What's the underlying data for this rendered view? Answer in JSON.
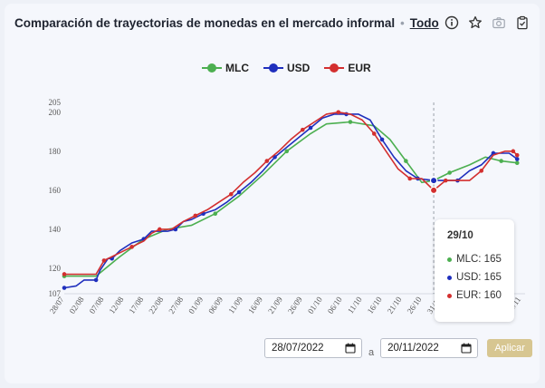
{
  "header": {
    "title": "Comparación de trayectorias de monedas en el mercado informal",
    "separator": "•",
    "period": "Todo",
    "icons": [
      "info-icon",
      "star-icon",
      "camera-icon",
      "clipboard-icon"
    ]
  },
  "controls": {
    "start_date": "28/07/2022",
    "connector": "a",
    "end_date": "20/11/2022",
    "apply_label": "Aplicar"
  },
  "colors": {
    "MLC": "#4caf50",
    "USD": "#1f2fbd",
    "EUR": "#d32f2f",
    "accent": "#d7c691"
  },
  "tooltip": {
    "date": "29/10",
    "rows": [
      {
        "label": "MLC: 165",
        "color": "#4caf50"
      },
      {
        "label": "USD: 165",
        "color": "#1f2fbd"
      },
      {
        "label": "EUR: 160",
        "color": "#d32f2f"
      }
    ]
  },
  "chart_data": {
    "type": "line",
    "title": "",
    "xlabel": "",
    "ylabel": "",
    "ylim": [
      107,
      205
    ],
    "y_ticks": [
      107,
      120,
      140,
      160,
      180,
      200,
      205
    ],
    "x_ticks": [
      "28/07",
      "02/08",
      "07/08",
      "12/08",
      "17/08",
      "22/08",
      "27/08",
      "01/09",
      "06/09",
      "11/09",
      "16/09",
      "21/09",
      "26/09",
      "01/10",
      "06/10",
      "11/10",
      "16/10",
      "21/10",
      "26/10",
      "31/10",
      "05/11",
      "10/11",
      "15/11",
      "20/11"
    ],
    "x_days": [
      0,
      5,
      10,
      15,
      20,
      25,
      30,
      35,
      40,
      45,
      50,
      55,
      60,
      65,
      70,
      75,
      80,
      85,
      90,
      95,
      100,
      105,
      110,
      115
    ],
    "x_range": [
      0,
      116
    ],
    "crosshair_day": 93,
    "legend": "top-center",
    "series": [
      {
        "name": "MLC",
        "points": [
          [
            0,
            116
          ],
          [
            8,
            116
          ],
          [
            14,
            126
          ],
          [
            20,
            135
          ],
          [
            26,
            140
          ],
          [
            32,
            142
          ],
          [
            38,
            148
          ],
          [
            44,
            157
          ],
          [
            50,
            168
          ],
          [
            56,
            180
          ],
          [
            62,
            189
          ],
          [
            66,
            194
          ],
          [
            72,
            195
          ],
          [
            78,
            193
          ],
          [
            82,
            186
          ],
          [
            86,
            175
          ],
          [
            90,
            164
          ],
          [
            93,
            165
          ],
          [
            97,
            169
          ],
          [
            102,
            173
          ],
          [
            106,
            177
          ],
          [
            110,
            175
          ],
          [
            114,
            174
          ]
        ]
      },
      {
        "name": "USD",
        "points": [
          [
            0,
            110
          ],
          [
            3,
            111
          ],
          [
            5,
            114
          ],
          [
            8,
            114
          ],
          [
            9,
            119
          ],
          [
            11,
            125
          ],
          [
            12,
            125
          ],
          [
            14,
            129
          ],
          [
            17,
            133
          ],
          [
            20,
            135
          ],
          [
            22,
            139
          ],
          [
            26,
            139
          ],
          [
            28,
            140
          ],
          [
            30,
            144
          ],
          [
            32,
            145
          ],
          [
            35,
            148
          ],
          [
            38,
            150
          ],
          [
            41,
            154
          ],
          [
            44,
            159
          ],
          [
            47,
            164
          ],
          [
            50,
            170
          ],
          [
            53,
            177
          ],
          [
            56,
            182
          ],
          [
            59,
            187
          ],
          [
            62,
            192
          ],
          [
            65,
            197
          ],
          [
            68,
            199
          ],
          [
            71,
            199
          ],
          [
            74,
            199
          ],
          [
            77,
            196
          ],
          [
            80,
            186
          ],
          [
            83,
            177
          ],
          [
            86,
            170
          ],
          [
            89,
            166
          ],
          [
            93,
            165
          ],
          [
            96,
            165
          ],
          [
            99,
            165
          ],
          [
            102,
            170
          ],
          [
            105,
            173
          ],
          [
            108,
            179
          ],
          [
            110,
            179
          ],
          [
            112,
            179
          ],
          [
            114,
            176
          ]
        ]
      },
      {
        "name": "EUR",
        "points": [
          [
            0,
            117
          ],
          [
            4,
            117
          ],
          [
            8,
            117
          ],
          [
            10,
            124
          ],
          [
            12,
            126
          ],
          [
            14,
            128
          ],
          [
            17,
            131
          ],
          [
            20,
            134
          ],
          [
            22,
            138
          ],
          [
            24,
            140
          ],
          [
            27,
            140
          ],
          [
            30,
            144
          ],
          [
            33,
            147
          ],
          [
            36,
            150
          ],
          [
            39,
            154
          ],
          [
            42,
            158
          ],
          [
            45,
            164
          ],
          [
            48,
            169
          ],
          [
            51,
            175
          ],
          [
            54,
            180
          ],
          [
            57,
            186
          ],
          [
            60,
            191
          ],
          [
            63,
            195
          ],
          [
            66,
            199
          ],
          [
            69,
            200
          ],
          [
            72,
            199
          ],
          [
            75,
            196
          ],
          [
            78,
            189
          ],
          [
            81,
            180
          ],
          [
            84,
            171
          ],
          [
            87,
            166
          ],
          [
            90,
            166
          ],
          [
            93,
            160
          ],
          [
            96,
            165
          ],
          [
            99,
            165
          ],
          [
            102,
            165
          ],
          [
            105,
            170
          ],
          [
            108,
            178
          ],
          [
            111,
            180
          ],
          [
            113,
            180
          ],
          [
            114,
            178
          ]
        ]
      }
    ]
  }
}
